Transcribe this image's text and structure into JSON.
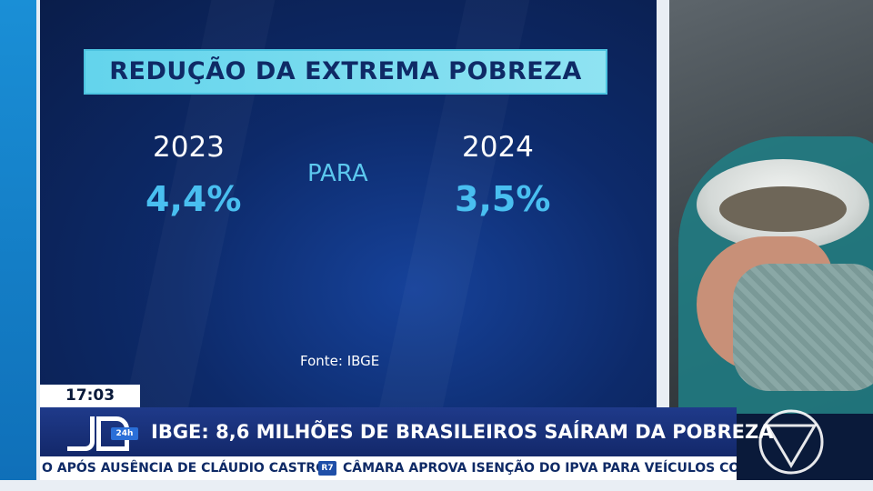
{
  "graphic": {
    "title": "REDUÇÃO DA EXTREMA POBREZA",
    "year_left": "2023",
    "value_left": "4,4%",
    "connector": "PARA",
    "year_right": "2024",
    "value_right": "3,5%",
    "source": "Fonte: IBGE"
  },
  "lower_third": {
    "time": "17:03",
    "program_logo_badge": "24h",
    "headline": "IBGE: 8,6 MILHÕES DE BRASILEIROS SAÍRAM DA POBREZA"
  },
  "ticker": {
    "item_a": "O APÓS AUSÊNCIA DE CLÁUDIO CASTRO",
    "separator_badge": "R7",
    "item_b": "CÂMARA APROVA ISENÇÃO DO IPVA PARA VEÍCULOS COM MA"
  },
  "colors": {
    "title_box": "#63d4ec",
    "value_text": "#49bff0",
    "headline_bar": "#1f3a8a",
    "panel_bg": "#0d2a6a"
  },
  "icons": [
    "network-logo-icon",
    "program-logo-icon",
    "r7-badge-icon"
  ]
}
